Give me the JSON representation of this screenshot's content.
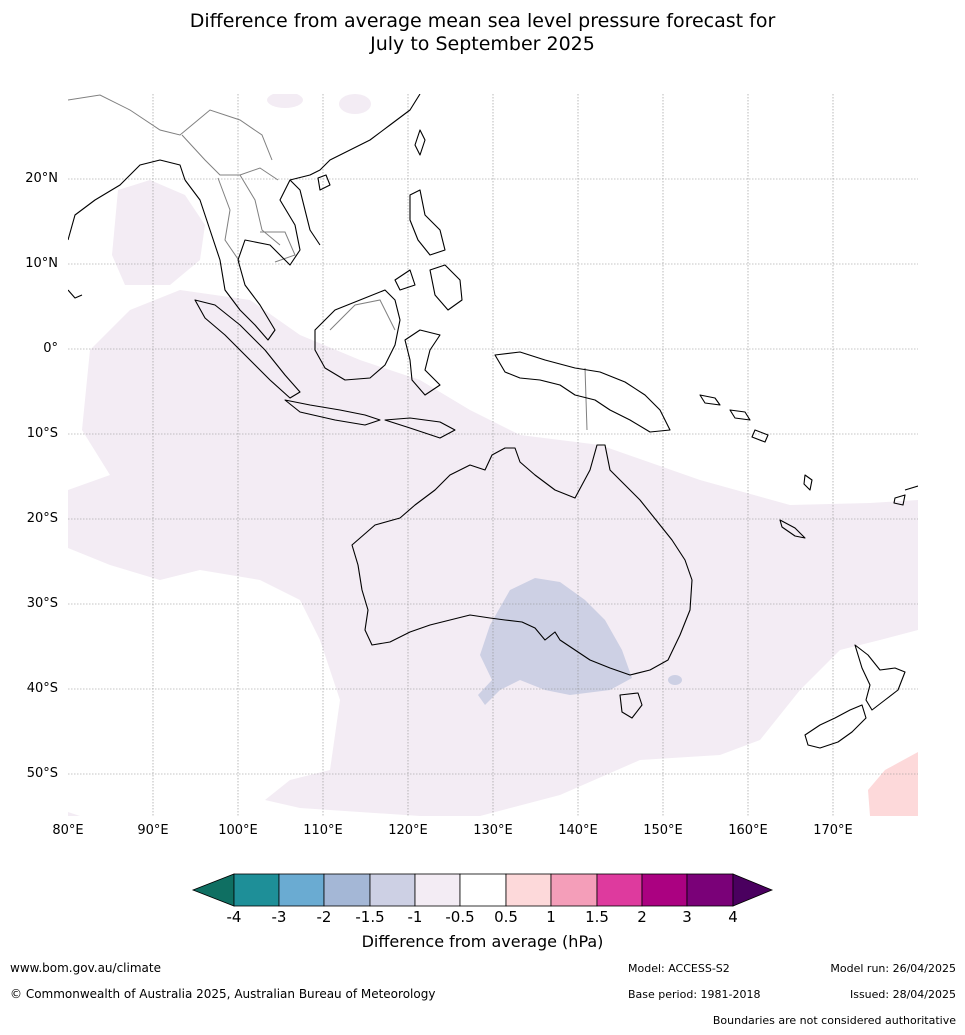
{
  "title": {
    "line1": "Difference from average mean sea level pressure forecast for",
    "line2": "July to September 2025"
  },
  "map": {
    "lat_labels": [
      "20°N",
      "10°N",
      "0°",
      "10°S",
      "20°S",
      "30°S",
      "40°S",
      "50°S"
    ],
    "lon_labels": [
      "80°E",
      "90°E",
      "100°E",
      "110°E",
      "120°E",
      "130°E",
      "140°E",
      "150°E",
      "160°E",
      "170°E"
    ],
    "extent": {
      "lon_min": 80,
      "lon_max": 180,
      "lat_min": -55,
      "lat_max": 30
    }
  },
  "colorbar": {
    "ticks": [
      "-4",
      "-3",
      "-2",
      "-1.5",
      "-1",
      "-0.5",
      "0.5",
      "1",
      "1.5",
      "2",
      "3",
      "4"
    ],
    "colors": [
      "#0f6f62",
      "#1e8f98",
      "#6aabd2",
      "#a4b7d6",
      "#cdd0e4",
      "#f3ecf4",
      "#ffffff",
      "#fdd9da",
      "#f49eb9",
      "#de3a9e",
      "#ab0181",
      "#7a0178",
      "#4a005f"
    ],
    "label": "Difference from average (hPa)"
  },
  "footer": {
    "url": "www.bom.gov.au/climate",
    "copyright": "© Commonwealth of Australia 2025, Australian Bureau of Meteorology",
    "model": "Model: ACCESS-S2",
    "model_run": "Model run: 26/04/2025",
    "base_period": "Base period: 1981-2018",
    "issued": "Issued: 28/04/2025",
    "disclaimer": "Boundaries are not considered authoritative"
  }
}
